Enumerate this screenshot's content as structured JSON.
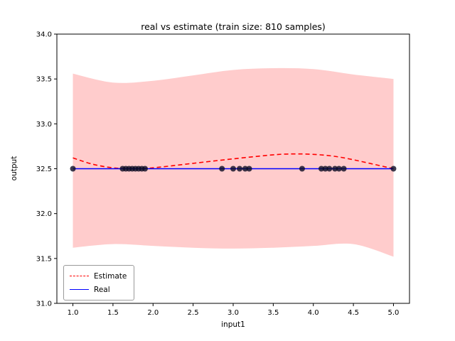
{
  "figure": {
    "title": "real vs estimate (train size: 810 samples)",
    "xlabel": "input1",
    "ylabel": "output"
  },
  "legend": {
    "items": [
      {
        "label": "Estimate",
        "style": "dashed",
        "color": "#ff0000"
      },
      {
        "label": "Real",
        "style": "solid",
        "color": "#0000ff"
      }
    ]
  },
  "chart_data": {
    "type": "line",
    "title": "real vs estimate (train size: 810 samples)",
    "xlabel": "input1",
    "ylabel": "output",
    "xlim": [
      0.8,
      5.2
    ],
    "ylim": [
      31.0,
      34.0
    ],
    "xticks": [
      1.0,
      1.5,
      2.0,
      2.5,
      3.0,
      3.5,
      4.0,
      4.5,
      5.0
    ],
    "yticks": [
      31.0,
      31.5,
      32.0,
      32.5,
      33.0,
      33.5,
      34.0
    ],
    "grid": false,
    "legend_position": "lower left",
    "series": [
      {
        "name": "Estimate",
        "type": "line",
        "style": "dashed",
        "color": "#ff0000",
        "x": [
          1.0,
          1.25,
          1.5,
          1.75,
          2.0,
          2.5,
          3.0,
          3.5,
          3.75,
          4.0,
          4.25,
          4.5,
          5.0
        ],
        "y": [
          32.62,
          32.55,
          32.51,
          32.5,
          32.51,
          32.56,
          32.61,
          32.655,
          32.665,
          32.66,
          32.64,
          32.6,
          32.5
        ]
      },
      {
        "name": "Real",
        "type": "line",
        "style": "solid",
        "color": "#0000ff",
        "x": [
          1.0,
          5.0
        ],
        "y": [
          32.5,
          32.5
        ]
      }
    ],
    "band": {
      "name": "confidence-band",
      "color": "#ffcccc",
      "x": [
        1.0,
        1.5,
        2.0,
        2.5,
        3.0,
        3.5,
        4.0,
        4.5,
        5.0
      ],
      "upper": [
        33.56,
        33.46,
        33.48,
        33.54,
        33.6,
        33.62,
        33.61,
        33.55,
        33.5
      ],
      "lower": [
        31.62,
        31.66,
        31.64,
        31.62,
        31.61,
        31.62,
        31.64,
        31.66,
        31.52
      ]
    },
    "scatter": {
      "name": "train-samples",
      "color": "#0b0b23",
      "opacity": 0.8,
      "radius": 4,
      "x": [
        1.0,
        1.62,
        1.66,
        1.7,
        1.74,
        1.78,
        1.82,
        1.86,
        1.9,
        2.86,
        3.0,
        3.08,
        3.15,
        3.2,
        3.86,
        4.1,
        4.15,
        4.2,
        4.27,
        4.32,
        4.38,
        5.0
      ],
      "y": 32.5
    }
  }
}
